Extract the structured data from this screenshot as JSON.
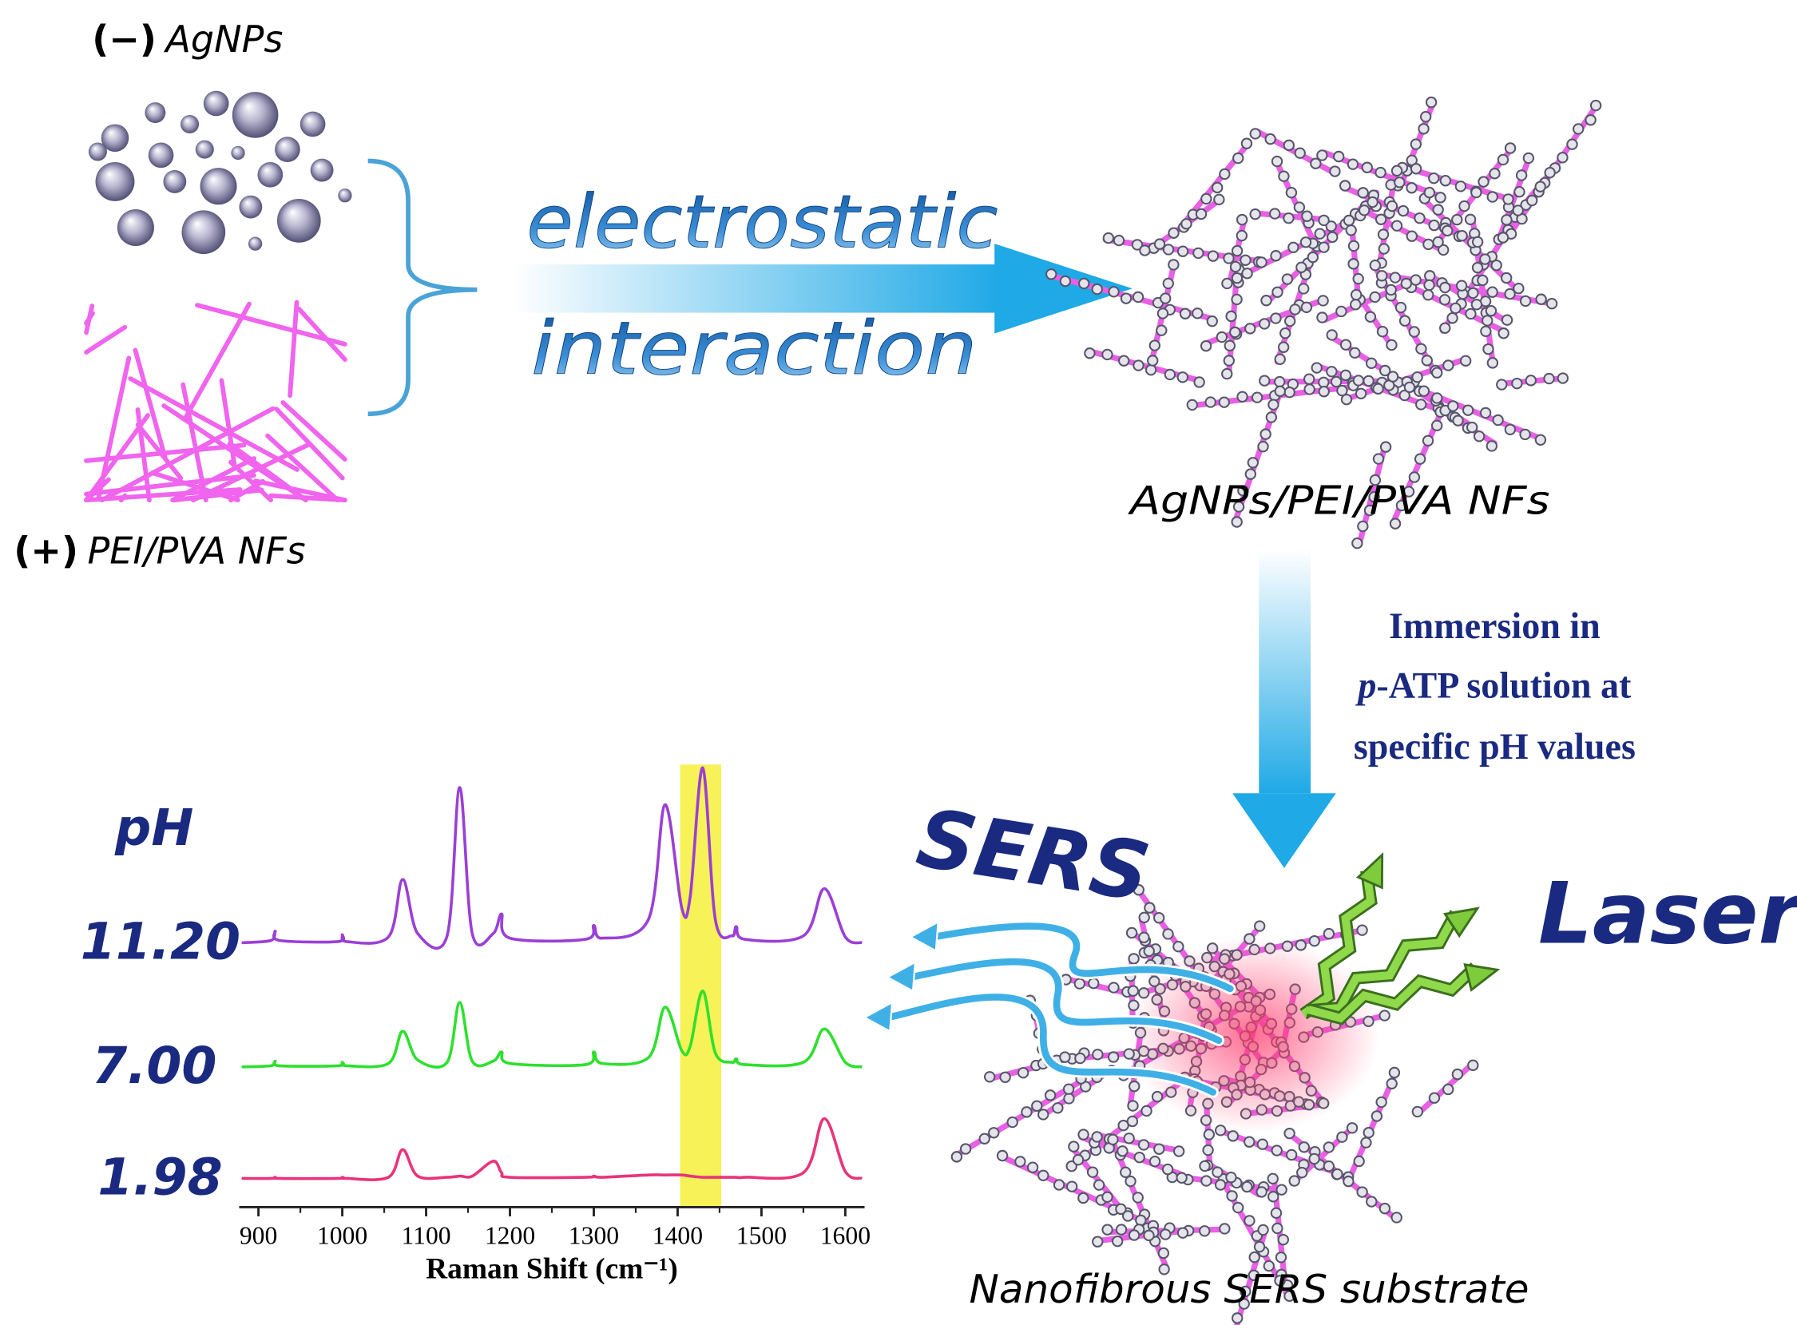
{
  "left": {
    "agnps": {
      "charge": "(−)",
      "label": "AgNPs"
    },
    "fibers": {
      "charge": "(+)",
      "label": "PEI/PVA NFs"
    }
  },
  "process": {
    "line1": "electrostatic",
    "line2": "interaction"
  },
  "product": {
    "label": "AgNPs/PEI/PVA NFs"
  },
  "immersion": {
    "line1": "Immersion in",
    "line2_italic": "p",
    "line2": "-ATP solution at",
    "line3": "specific pH values"
  },
  "sers": "SERS",
  "laser": "Laser",
  "substrate": "Nanofibrous SERS substrate",
  "chart_data": {
    "type": "line",
    "x_label": "Raman Shift (cm⁻¹)",
    "y_label": "pH",
    "xlim": [
      877,
      1623
    ],
    "xticks": [
      900,
      1000,
      1100,
      1200,
      1300,
      1400,
      1500,
      1600
    ],
    "highlight": [
      1403,
      1452
    ],
    "x": [
      880,
      915,
      920,
      925,
      995,
      1000,
      1005,
      1055,
      1072,
      1090,
      1125,
      1140,
      1155,
      1180,
      1190,
      1200,
      1290,
      1300,
      1310,
      1365,
      1385,
      1405,
      1415,
      1430,
      1445,
      1465,
      1470,
      1480,
      1550,
      1575,
      1600,
      1620
    ],
    "series": [
      {
        "name": "11.20",
        "color": "#9b3fd6",
        "values": [
          0,
          2,
          10,
          2,
          1,
          7,
          1,
          5,
          55,
          8,
          6,
          135,
          8,
          8,
          25,
          4,
          3,
          15,
          4,
          20,
          120,
          30,
          40,
          152,
          20,
          6,
          14,
          3,
          6,
          47,
          5,
          0
        ]
      },
      {
        "name": "7.00",
        "color": "#2ee02e",
        "values": [
          0,
          1,
          5,
          1,
          1,
          4,
          1,
          3,
          31,
          6,
          4,
          56,
          5,
          5,
          13,
          3,
          2,
          13,
          3,
          8,
          52,
          14,
          18,
          66,
          12,
          4,
          7,
          2,
          4,
          33,
          4,
          0
        ]
      },
      {
        "name": "1.98",
        "color": "#e8347a",
        "values": [
          0,
          0,
          1,
          0,
          0,
          1,
          0,
          1,
          25,
          2,
          1,
          2,
          2,
          15,
          5,
          1,
          1,
          2,
          1,
          3,
          3,
          3,
          2,
          1,
          1,
          1,
          1,
          1,
          5,
          52,
          6,
          0
        ]
      }
    ]
  }
}
